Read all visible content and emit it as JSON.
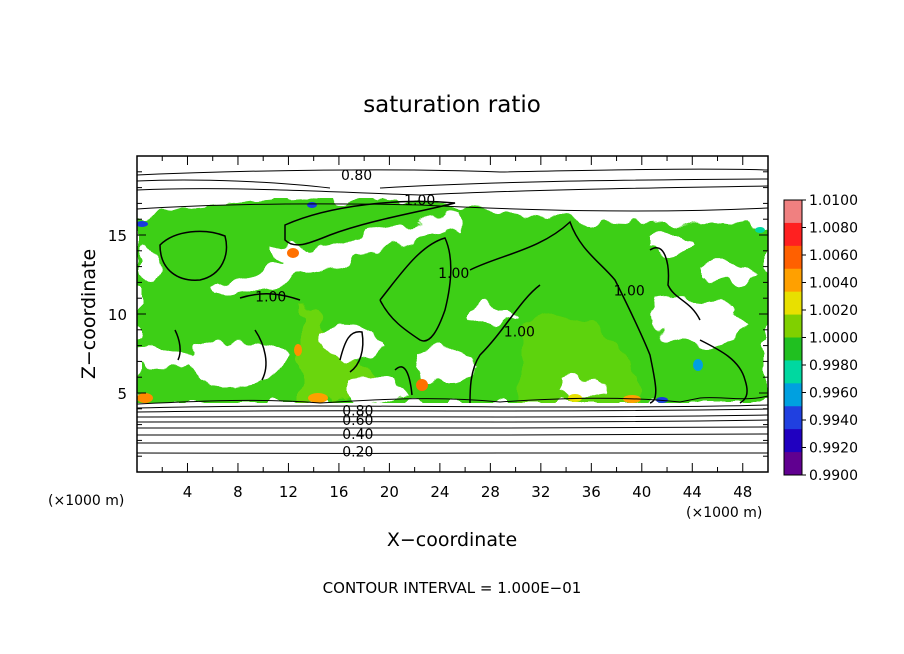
{
  "chart_data": {
    "type": "heatmap",
    "title": "saturation ratio",
    "xlabel": "X−coordinate",
    "ylabel": "Z−coordinate",
    "x_unit": "(×1000 m)",
    "y_unit": "(×1000 m)",
    "xlim": [
      0,
      50
    ],
    "ylim": [
      0,
      20
    ],
    "x_ticks": [
      "4",
      "8",
      "12",
      "16",
      "20",
      "24",
      "28",
      "32",
      "36",
      "40",
      "44",
      "48"
    ],
    "y_ticks": [
      "5",
      "10",
      "15"
    ],
    "footer": "CONTOUR INTERVAL = 1.000E−01",
    "colorbar": {
      "labels": [
        "1.0100",
        "1.0080",
        "1.0060",
        "1.0040",
        "1.0020",
        "1.0000",
        "0.9980",
        "0.9960",
        "0.9940",
        "0.9920",
        "0.9900"
      ],
      "colors": [
        "#f08080",
        "#ff2020",
        "#ff6000",
        "#ffa000",
        "#e8e000",
        "#80d000",
        "#20c020",
        "#00d8a0",
        "#00a0e0",
        "#2040e0",
        "#2000c0",
        "#600090"
      ]
    },
    "contour_labels": [
      {
        "text": "0.80",
        "x": 17.4,
        "z": 18.8
      },
      {
        "text": "1.00",
        "x": 22.4,
        "z": 17.2
      },
      {
        "text": "1.00",
        "x": 10.6,
        "z": 11.1
      },
      {
        "text": "1.00",
        "x": 25.1,
        "z": 12.6
      },
      {
        "text": "1.00",
        "x": 30.3,
        "z": 8.9
      },
      {
        "text": "1.00",
        "x": 39.0,
        "z": 11.5
      },
      {
        "text": "0.80",
        "x": 17.5,
        "z": 3.9
      },
      {
        "text": "0.60",
        "x": 17.5,
        "z": 3.3
      },
      {
        "text": "0.40",
        "x": 17.5,
        "z": 2.4
      },
      {
        "text": "0.20",
        "x": 17.5,
        "z": 1.3
      }
    ]
  }
}
